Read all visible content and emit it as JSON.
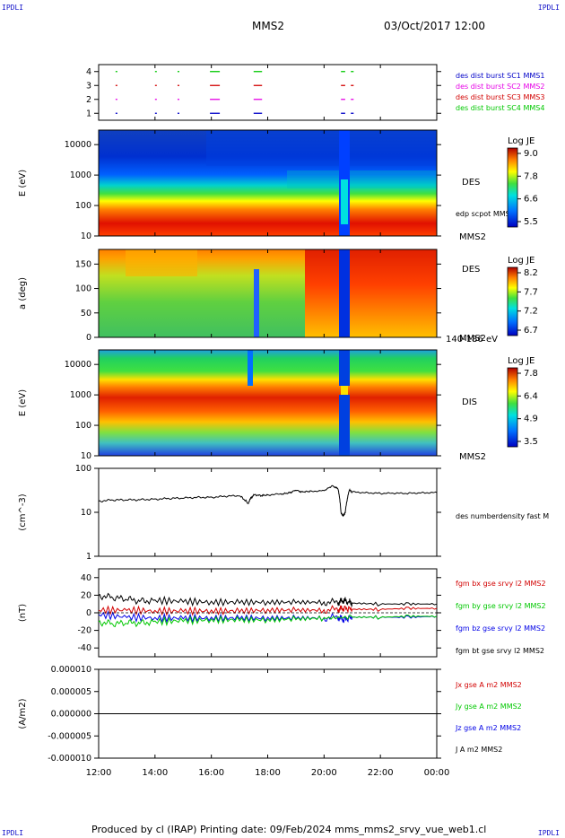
{
  "corners": {
    "tl": "IPDLI",
    "tr": "IPDLI",
    "bl": "IPDLI",
    "br": "IPDLI"
  },
  "header": {
    "spacecraft": "MMS2",
    "datetime": "03/Oct/2017 12:00"
  },
  "footer": {
    "text": "Produced by cl (IRAP)   Printing date: 09/Feb/2024   mms_mms2_srvy_vue_web1.cl"
  },
  "colors": {
    "mms1": "#0000c8",
    "mms2": "#e600e6",
    "mms3": "#d20000",
    "mms4": "#00c800",
    "bx": "#d20000",
    "by": "#00c800",
    "bz": "#0000e6",
    "bt": "#000000"
  },
  "time_axis": {
    "ticks": [
      "12:00",
      "14:00",
      "16:00",
      "18:00",
      "20:00",
      "22:00",
      "00:00"
    ],
    "range_hours": [
      0,
      12
    ]
  },
  "chart_data": [
    {
      "type": "scatter",
      "name": "burst",
      "ylim": [
        0.5,
        4.5
      ],
      "yticks": [
        "1",
        "2",
        "3",
        "4"
      ],
      "legend": [
        "des dist burst SC1 MMS1",
        "des dist burst SC2 MMS2",
        "des dist burst SC3 MMS3",
        "des dist burst SC4 MMS4"
      ],
      "intervals": [
        [
          0.6,
          0.65
        ],
        [
          2.0,
          2.05
        ],
        [
          2.8,
          2.85
        ],
        [
          3.95,
          4.3
        ],
        [
          5.5,
          5.8
        ],
        [
          8.6,
          8.75
        ],
        [
          8.95,
          9.05
        ]
      ]
    },
    {
      "type": "heatmap",
      "name": "des_energy",
      "ylabel": "E (eV)",
      "yscale": "log",
      "ylim": [
        10,
        30000
      ],
      "yticks": [
        "10",
        "100",
        "1000",
        "10000"
      ],
      "instrument": "DES",
      "sub": "edp scpot MMS2",
      "sc": "MMS2",
      "cbar": {
        "title": "Log JE",
        "ticks": [
          "9.0",
          "7.8",
          "6.6",
          "5.5"
        ]
      }
    },
    {
      "type": "heatmap",
      "name": "des_pitch",
      "ylabel": "a (deg)",
      "ylim": [
        0,
        180
      ],
      "yticks": [
        "0",
        "50",
        "100",
        "150"
      ],
      "instrument": "DES",
      "sc": "MMS2",
      "sub": "140-186 eV",
      "cbar": {
        "title": "Log JE",
        "ticks": [
          "8.2",
          "7.7",
          "7.2",
          "6.7"
        ]
      }
    },
    {
      "type": "heatmap",
      "name": "dis_energy",
      "ylabel": "E (eV)",
      "yscale": "log",
      "ylim": [
        10,
        30000
      ],
      "yticks": [
        "10",
        "100",
        "1000",
        "10000"
      ],
      "instrument": "DIS",
      "sc": "MMS2",
      "cbar": {
        "title": "Log JE",
        "ticks": [
          "7.8",
          "6.4",
          "4.9",
          "3.5"
        ]
      }
    },
    {
      "type": "line",
      "name": "density",
      "ylabel": "(cm^-3)",
      "yscale": "log",
      "ylim": [
        1,
        100
      ],
      "yticks": [
        "1",
        "10",
        "100"
      ],
      "legend": [
        "des numberdensity fast M"
      ],
      "series": [
        {
          "name": "des numberdensity fast M",
          "x": [
            0,
            0.5,
            1,
            1.5,
            2,
            2.5,
            3,
            3.5,
            4,
            4.5,
            5.0,
            5.3,
            5.5,
            5.8,
            6,
            6.5,
            6.8,
            7.0,
            7.2,
            7.5,
            8,
            8.3,
            8.5,
            8.6,
            8.75,
            8.9,
            9,
            9.5,
            10,
            10.5,
            11,
            11.5,
            12
          ],
          "y": [
            18,
            19,
            19,
            19.5,
            20,
            20.5,
            21,
            22,
            22,
            23,
            24,
            16,
            25,
            24,
            25,
            26,
            28,
            32,
            29,
            30,
            31,
            40,
            34,
            9,
            9,
            32,
            29,
            28,
            27,
            27,
            27,
            28,
            28
          ]
        }
      ]
    },
    {
      "type": "line",
      "name": "bfield",
      "ylabel": "(nT)",
      "ylim": [
        -50,
        50
      ],
      "yticks": [
        "-40",
        "-20",
        "0",
        "20",
        "40"
      ],
      "legend": [
        "fgm bx gse srvy l2 MMS2",
        "fgm by gse srvy l2 MMS2",
        "fgm bz gse srvy l2 MMS2",
        "fgm bt gse srvy l2 MMS2"
      ],
      "series": [
        {
          "name": "fgm bt gse srvy l2 MMS2",
          "x": [
            0,
            0.5,
            1,
            1.5,
            2,
            3,
            4,
            5,
            6,
            7,
            8,
            8.5,
            8.7,
            8.9,
            9,
            10,
            11,
            12
          ],
          "y": [
            20,
            17,
            15,
            14,
            14,
            13,
            12,
            12,
            12,
            12,
            12,
            12,
            14,
            12,
            11,
            10,
            10,
            10
          ]
        },
        {
          "name": "fgm bx gse srvy l2 MMS2",
          "x": [
            0,
            1,
            2,
            3,
            4,
            5,
            6,
            7,
            8,
            8.5,
            8.7,
            9,
            10,
            11,
            12
          ],
          "y": [
            3,
            3,
            2,
            2,
            2,
            2,
            3,
            3,
            3,
            4,
            5,
            4,
            4,
            5,
            5
          ]
        },
        {
          "name": "fgm bz gse srvy l2 MMS2",
          "x": [
            0,
            1,
            2,
            3,
            4,
            5,
            6,
            7,
            8,
            8.5,
            8.7,
            9,
            10,
            11,
            12
          ],
          "y": [
            -2,
            -5,
            -6,
            -6,
            -6,
            -6,
            -6,
            -6,
            -6,
            -5,
            -8,
            -5,
            -5,
            -5,
            -4
          ]
        },
        {
          "name": "fgm by gse srvy l2 MMS2",
          "x": [
            0,
            0.5,
            1,
            1.5,
            2,
            3,
            4,
            5,
            6,
            7,
            8,
            9,
            10,
            11,
            12
          ],
          "y": [
            -10,
            -13,
            -12,
            -11,
            -10,
            -9,
            -8,
            -8,
            -8,
            -7,
            -6,
            -5,
            -5,
            -4,
            -4
          ]
        }
      ]
    },
    {
      "type": "line",
      "name": "current",
      "ylabel": "(A/m2)",
      "ylim": [
        -1e-05,
        1e-05
      ],
      "yticks": [
        "-0.000010",
        "-0.000005",
        "0.000000",
        "0.000005",
        "0.000010"
      ],
      "legend": [
        "Jx gse A m2 MMS2",
        "Jy gse A m2 MMS2",
        "Jz gse A m2 MMS2",
        "J A m2 MMS2"
      ],
      "series": [
        {
          "name": "J A m2 MMS2",
          "x": [
            0,
            12
          ],
          "y": [
            0,
            0
          ]
        }
      ]
    }
  ]
}
